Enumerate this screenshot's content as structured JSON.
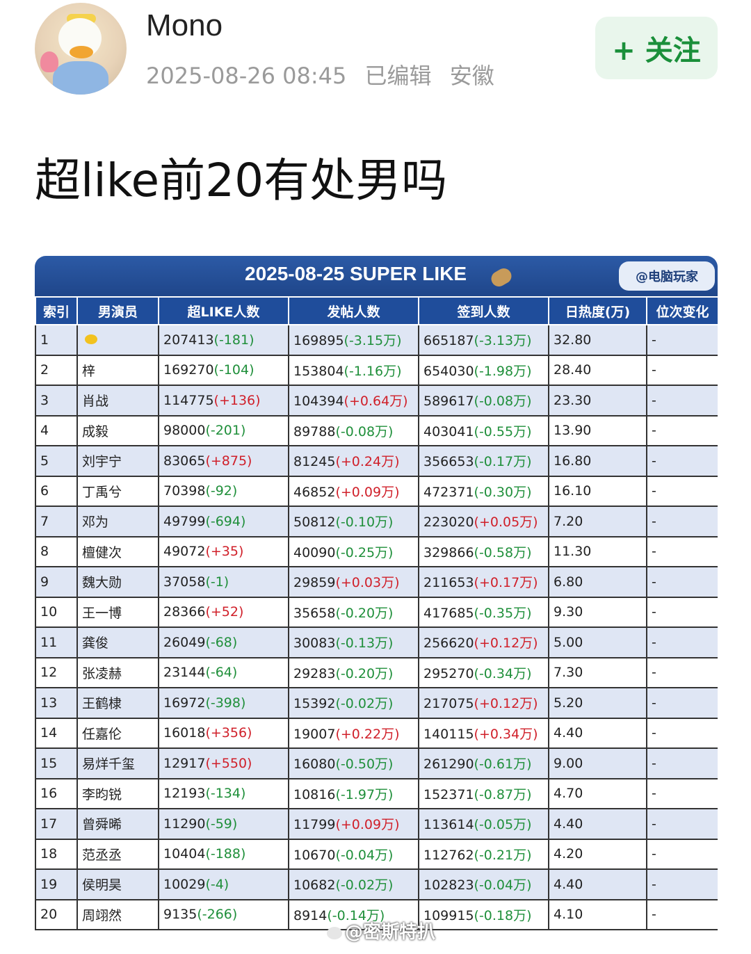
{
  "user": {
    "name": "Mono",
    "timestamp": "2025-08-26 08:45",
    "edited": "已编辑",
    "location": "安徽",
    "avatar_icon": "duck-avatar-icon"
  },
  "follow_button": {
    "label": "+ 关注"
  },
  "post": {
    "title": "超like前20有处男吗"
  },
  "image": {
    "banner_title": "2025-08-25 SUPER LIKE",
    "source_badge": "@电脑玩家",
    "watermark": "@密斯特扒",
    "colors": {
      "header_bg": "#1f4d9b",
      "neg": "#1f8f3a",
      "pos": "#d0202a"
    },
    "table": {
      "headers": [
        "索引",
        "男演员",
        "超LIKE人数",
        "发帖人数",
        "签到人数",
        "日热度(万)",
        "位次变化"
      ],
      "rows": [
        {
          "idx": "1",
          "name": "",
          "like": "207413",
          "like_d": "(-181)",
          "post": "169895",
          "post_d": "(-3.15万)",
          "sign": "665187",
          "sign_d": "(-3.13万)",
          "heat": "32.80",
          "change": "-"
        },
        {
          "idx": "2",
          "name": "梓",
          "like": "169270",
          "like_d": "(-104)",
          "post": "153804",
          "post_d": "(-1.16万)",
          "sign": "654030",
          "sign_d": "(-1.98万)",
          "heat": "28.40",
          "change": "-"
        },
        {
          "idx": "3",
          "name": "肖战",
          "like": "114775",
          "like_d": "(+136)",
          "post": "104394",
          "post_d": "(+0.64万)",
          "sign": "589617",
          "sign_d": "(-0.08万)",
          "heat": "23.30",
          "change": "-"
        },
        {
          "idx": "4",
          "name": "成毅",
          "like": "98000",
          "like_d": "(-201)",
          "post": "89788",
          "post_d": "(-0.08万)",
          "sign": "403041",
          "sign_d": "(-0.55万)",
          "heat": "13.90",
          "change": "-"
        },
        {
          "idx": "5",
          "name": "刘宇宁",
          "like": "83065",
          "like_d": "(+875)",
          "post": "81245",
          "post_d": "(+0.24万)",
          "sign": "356653",
          "sign_d": "(-0.17万)",
          "heat": "16.80",
          "change": "-"
        },
        {
          "idx": "6",
          "name": "丁禹兮",
          "like": "70398",
          "like_d": "(-92)",
          "post": "46852",
          "post_d": "(+0.09万)",
          "sign": "472371",
          "sign_d": "(-0.30万)",
          "heat": "16.10",
          "change": "-"
        },
        {
          "idx": "7",
          "name": "邓为",
          "like": "49799",
          "like_d": "(-694)",
          "post": "50812",
          "post_d": "(-0.10万)",
          "sign": "223020",
          "sign_d": "(+0.05万)",
          "heat": "7.20",
          "change": "-"
        },
        {
          "idx": "8",
          "name": "檀健次",
          "like": "49072",
          "like_d": "(+35)",
          "post": "40090",
          "post_d": "(-0.25万)",
          "sign": "329866",
          "sign_d": "(-0.58万)",
          "heat": "11.30",
          "change": "-"
        },
        {
          "idx": "9",
          "name": "魏大勋",
          "like": "37058",
          "like_d": "(-1)",
          "post": "29859",
          "post_d": "(+0.03万)",
          "sign": "211653",
          "sign_d": "(+0.17万)",
          "heat": "6.80",
          "change": "-"
        },
        {
          "idx": "10",
          "name": "王一博",
          "like": "28366",
          "like_d": "(+52)",
          "post": "35658",
          "post_d": "(-0.20万)",
          "sign": "417685",
          "sign_d": "(-0.35万)",
          "heat": "9.30",
          "change": "-"
        },
        {
          "idx": "11",
          "name": "龚俊",
          "like": "26049",
          "like_d": "(-68)",
          "post": "30083",
          "post_d": "(-0.13万)",
          "sign": "256620",
          "sign_d": "(+0.12万)",
          "heat": "5.00",
          "change": "-"
        },
        {
          "idx": "12",
          "name": "张凌赫",
          "like": "23144",
          "like_d": "(-64)",
          "post": "29283",
          "post_d": "(-0.20万)",
          "sign": "295270",
          "sign_d": "(-0.34万)",
          "heat": "7.30",
          "change": "-"
        },
        {
          "idx": "13",
          "name": "王鹤棣",
          "like": "16972",
          "like_d": "(-398)",
          "post": "15392",
          "post_d": "(-0.02万)",
          "sign": "217075",
          "sign_d": "(+0.12万)",
          "heat": "5.20",
          "change": "-"
        },
        {
          "idx": "14",
          "name": "任嘉伦",
          "like": "16018",
          "like_d": "(+356)",
          "post": "19007",
          "post_d": "(+0.22万)",
          "sign": "140115",
          "sign_d": "(+0.34万)",
          "heat": "4.40",
          "change": "-"
        },
        {
          "idx": "15",
          "name": "易烊千玺",
          "like": "12917",
          "like_d": "(+550)",
          "post": "16080",
          "post_d": "(-0.50万)",
          "sign": "261290",
          "sign_d": "(-0.61万)",
          "heat": "9.00",
          "change": "-"
        },
        {
          "idx": "16",
          "name": "李昀锐",
          "like": "12193",
          "like_d": "(-134)",
          "post": "10816",
          "post_d": "(-1.97万)",
          "sign": "152371",
          "sign_d": "(-0.87万)",
          "heat": "4.70",
          "change": "-"
        },
        {
          "idx": "17",
          "name": "曾舜晞",
          "like": "11290",
          "like_d": "(-59)",
          "post": "11799",
          "post_d": "(+0.09万)",
          "sign": "113614",
          "sign_d": "(-0.05万)",
          "heat": "4.40",
          "change": "-"
        },
        {
          "idx": "18",
          "name": "范丞丞",
          "like": "10404",
          "like_d": "(-188)",
          "post": "10670",
          "post_d": "(-0.04万)",
          "sign": "112762",
          "sign_d": "(-0.21万)",
          "heat": "4.20",
          "change": "-"
        },
        {
          "idx": "19",
          "name": "侯明昊",
          "like": "10029",
          "like_d": "(-4)",
          "post": "10682",
          "post_d": "(-0.02万)",
          "sign": "102823",
          "sign_d": "(-0.04万)",
          "heat": "4.40",
          "change": "-"
        },
        {
          "idx": "20",
          "name": "周翊然",
          "like": "9135",
          "like_d": "(-266)",
          "post": "8914",
          "post_d": "(-0.14万)",
          "sign": "109915",
          "sign_d": "(-0.18万)",
          "heat": "4.10",
          "change": "-"
        }
      ]
    }
  }
}
